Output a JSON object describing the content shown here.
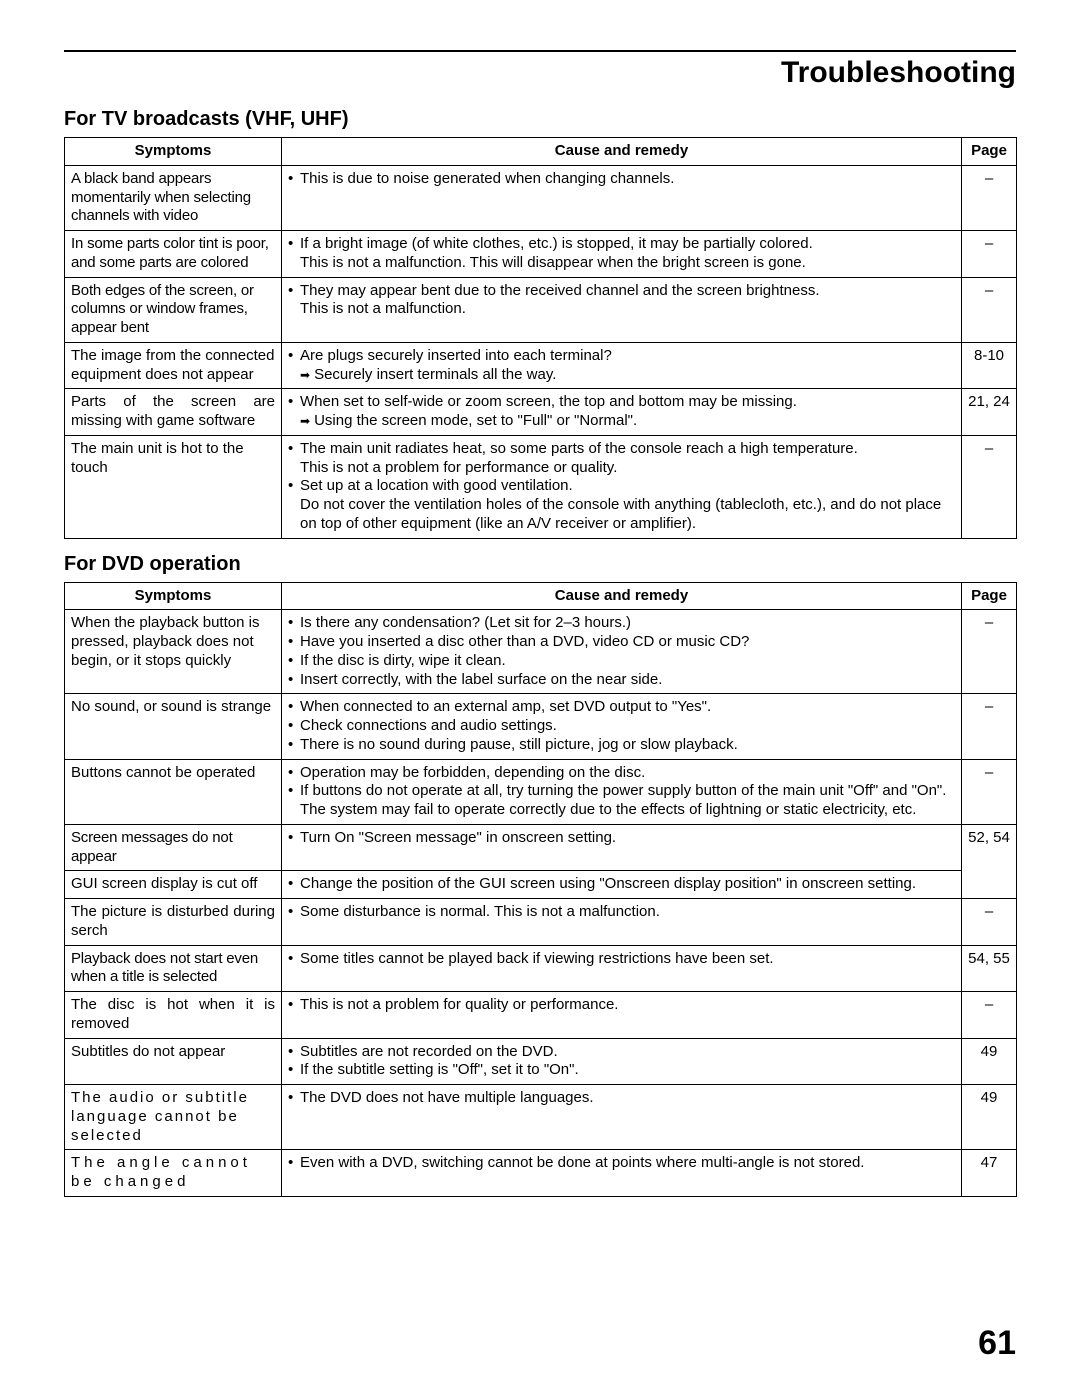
{
  "page_title": "Troubleshooting",
  "page_number": "61",
  "sections": [
    {
      "heading": "For TV broadcasts (VHF, UHF)",
      "headers": {
        "symptoms": "Symptoms",
        "remedy": "Cause and remedy",
        "page": "Page"
      },
      "rows": [
        {
          "symptom": "A black band appears momentarily when selecting channels with video",
          "symptom_class": "tight",
          "remedy": [
            {
              "text": "This is due to noise generated when changing channels."
            }
          ],
          "page": "–"
        },
        {
          "symptom": "In some parts color tint is poor, and some parts are colored",
          "symptom_class": "tight",
          "remedy": [
            {
              "text": "If a bright image (of white clothes, etc.) is stopped, it may be partially colored.",
              "sub": "This is not a malfunction. This will disappear when the bright screen is gone."
            }
          ],
          "page": "–"
        },
        {
          "symptom": "Both edges of the screen, or columns or window frames, appear bent",
          "symptom_class": "tight",
          "remedy": [
            {
              "text": "They may appear bent due to the received channel and the screen brightness.",
              "sub": "This is not a malfunction."
            }
          ],
          "page": "–"
        },
        {
          "symptom": "The image from the connected equipment does not appear",
          "remedy": [
            {
              "text": "Are plugs securely inserted into each terminal?",
              "arrow": "Securely insert terminals all the way."
            }
          ],
          "page": "8-10"
        },
        {
          "symptom": "Parts of the screen are missing with game software",
          "symptom_class": "justify",
          "remedy": [
            {
              "text": "When set to self-wide or zoom screen, the top and bottom may be missing.",
              "arrow": "Using the screen mode, set to \"Full\" or \"Normal\"."
            }
          ],
          "page": "21, 24"
        },
        {
          "symptom": "The main unit is hot to the touch",
          "remedy": [
            {
              "text": "The main unit radiates heat, so some parts of the console reach a high temperature.",
              "sub": "This is not a problem for performance or quality."
            },
            {
              "text": "Set up at a location with good ventilation.",
              "sub": "Do not cover the ventilation holes of the console with anything (tablecloth, etc.), and do not place on top of other equipment (like an A/V receiver or amplifier)."
            }
          ],
          "page": "–"
        }
      ]
    },
    {
      "heading": "For DVD operation",
      "headers": {
        "symptoms": "Symptoms",
        "remedy": "Cause and remedy",
        "page": "Page"
      },
      "rows": [
        {
          "symptom": "When the playback button is pressed, playback does not begin, or it stops quickly",
          "remedy": [
            {
              "text": "Is there any condensation? (Let sit for 2–3 hours.)"
            },
            {
              "text": "Have you inserted a disc other than a DVD, video CD or music CD?"
            },
            {
              "text": "If the disc is dirty, wipe it clean."
            },
            {
              "text": "Insert correctly, with the label surface on the near side."
            }
          ],
          "page": "–"
        },
        {
          "symptom": "No sound, or sound is strange",
          "symptom_class": "justify",
          "remedy": [
            {
              "text": "When connected to an external amp, set DVD output to \"Yes\"."
            },
            {
              "text": "Check connections and audio settings."
            },
            {
              "text": "There is no sound during pause, still picture, jog or slow playback."
            }
          ],
          "page": "–"
        },
        {
          "symptom": "Buttons cannot be operated",
          "remedy": [
            {
              "text": "Operation may be forbidden, depending on the disc."
            },
            {
              "text": "If buttons do not operate at all, try turning the power supply button of the main unit \"Off\" and \"On\". The system may fail to operate correctly due to the effects of lightning or static electricity, etc."
            }
          ],
          "page": "–"
        },
        {
          "symptom": "Screen messages do not appear",
          "symptom_class": "tight",
          "remedy": [
            {
              "text": "Turn On \"Screen message\" in onscreen setting."
            }
          ],
          "page": "52, 54",
          "row_span_page": 2
        },
        {
          "symptom": "GUI screen display is cut off",
          "remedy": [
            {
              "text": "Change the position of the GUI screen using \"Onscreen display position\" in onscreen setting."
            }
          ],
          "page": null
        },
        {
          "symptom": "The picture is disturbed during serch",
          "symptom_class": "justify",
          "remedy": [
            {
              "text": "Some disturbance is normal. This is not a malfunction."
            }
          ],
          "page": "–"
        },
        {
          "symptom": "Playback does not start even when a title is selected",
          "symptom_class": "tight",
          "remedy": [
            {
              "text": "Some titles cannot be played back if viewing restrictions have been set."
            }
          ],
          "page": "54, 55"
        },
        {
          "symptom": "The disc is hot when it is removed",
          "symptom_class": "justify",
          "remedy": [
            {
              "text": "This is not a problem for quality or performance."
            }
          ],
          "page": "–"
        },
        {
          "symptom": "Subtitles do not appear",
          "remedy": [
            {
              "text": "Subtitles are not recorded on the DVD."
            },
            {
              "text": "If the subtitle setting is \"Off\", set it to \"On\"."
            }
          ],
          "page": "49"
        },
        {
          "symptom": "The audio or subtitle language cannot be selected",
          "symptom_class": "spread tight",
          "remedy": [
            {
              "text": "The DVD does not have multiple languages."
            }
          ],
          "page": "49"
        },
        {
          "symptom": "The angle cannot be changed",
          "symptom_class": "spread2",
          "remedy": [
            {
              "text": "Even with a DVD, switching cannot be done at points where multi-angle is not stored."
            }
          ],
          "page": "47"
        }
      ]
    }
  ]
}
